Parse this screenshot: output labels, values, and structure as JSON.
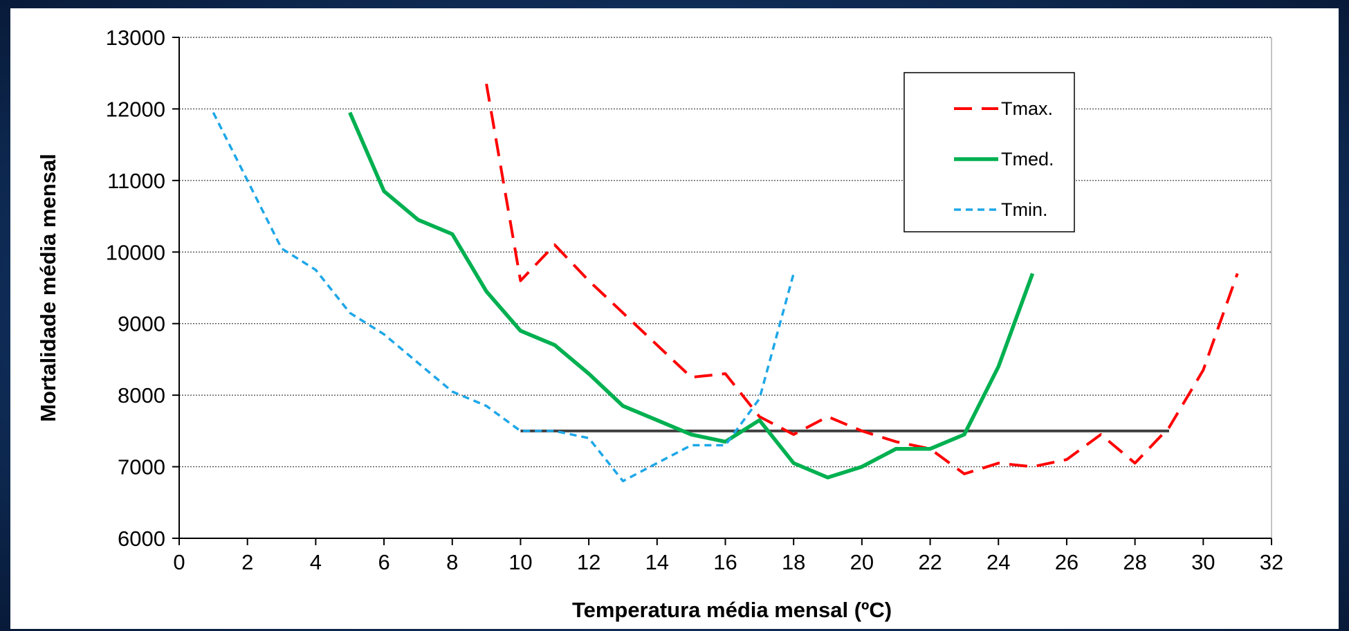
{
  "chart_data": {
    "type": "line",
    "title": "",
    "xlabel": "Temperatura média mensal (ºC)",
    "ylabel": "Mortalidade média mensal",
    "xlim": [
      0,
      32
    ],
    "ylim": [
      6000,
      13000
    ],
    "xticks": [
      0,
      2,
      4,
      6,
      8,
      10,
      12,
      14,
      16,
      18,
      20,
      22,
      24,
      26,
      28,
      30,
      32
    ],
    "yticks": [
      6000,
      7000,
      8000,
      9000,
      10000,
      11000,
      12000,
      13000
    ],
    "grid": "horizontal dotted",
    "legend_position": "top-right",
    "series": [
      {
        "name": "Tmax.",
        "color": "#ff0000",
        "style": "long-dash",
        "x": [
          9,
          10,
          11,
          12,
          13,
          14,
          15,
          16,
          17,
          18,
          19,
          20,
          21,
          22,
          23,
          24,
          25,
          26,
          27,
          28,
          29,
          30,
          31
        ],
        "y": [
          12350,
          9600,
          10100,
          9600,
          9150,
          8700,
          8250,
          8300,
          7700,
          7450,
          7700,
          7500,
          7350,
          7250,
          6900,
          7050,
          7000,
          7100,
          7450,
          7050,
          7550,
          8350,
          9700
        ]
      },
      {
        "name": "Tmed.",
        "color": "#00b050",
        "style": "solid",
        "x": [
          5,
          6,
          7,
          8,
          9,
          10,
          11,
          12,
          13,
          14,
          15,
          16,
          17,
          18,
          19,
          20,
          21,
          22,
          23,
          24,
          25
        ],
        "y": [
          11950,
          10850,
          10450,
          10250,
          9450,
          8900,
          8700,
          8300,
          7850,
          7650,
          7450,
          7350,
          7650,
          7050,
          6850,
          7000,
          7250,
          7250,
          7450,
          8400,
          9700
        ]
      },
      {
        "name": "Tmin.",
        "color": "#1ea7e8",
        "style": "short-dash",
        "x": [
          1,
          2,
          3,
          4,
          5,
          6,
          7,
          8,
          9,
          10,
          11,
          12,
          13,
          14,
          15,
          16,
          17,
          18
        ],
        "y": [
          11950,
          11000,
          10050,
          9750,
          9150,
          8850,
          8450,
          8050,
          7850,
          7500,
          7500,
          7400,
          6800,
          7050,
          7300,
          7300,
          7950,
          9700
        ]
      }
    ],
    "reference_line": {
      "x": [
        10,
        29
      ],
      "y": 7500,
      "color": "#404040"
    }
  }
}
